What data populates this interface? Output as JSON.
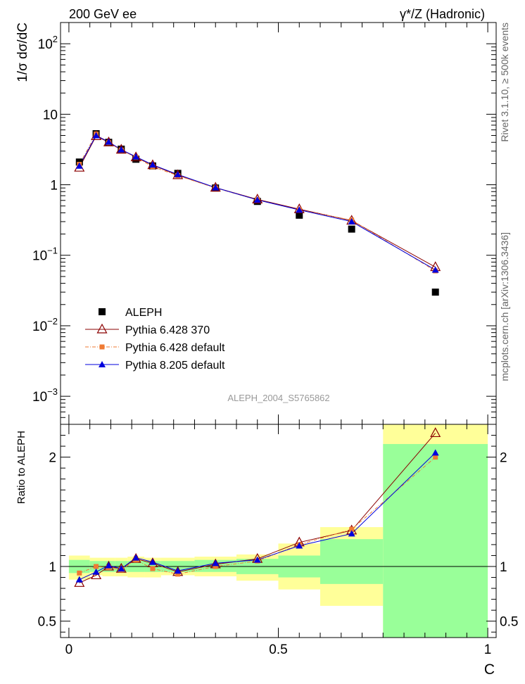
{
  "header": {
    "left": "200 GeV ee",
    "right": "γ*/Z (Hadronic)"
  },
  "side_labels": {
    "rivet": "Rivet 3.1.10, ≥ 500k events",
    "mcplots": "mcplots.cern.ch [arXiv:1306.3436]"
  },
  "watermark": "ALEPH_2004_S5765862",
  "colors": {
    "aleph": "#000000",
    "p6_370": "#8b0000",
    "p6_default": "#ef7a33",
    "p8": "#0000dd",
    "band_inner": "#99ff99",
    "band_outer": "#ffff99"
  },
  "chart_data": [
    {
      "id": "main",
      "type": "scatter",
      "ylabel": "1/σ dσ/dC",
      "yscale": "log",
      "ylim": [
        0.0004,
        200
      ],
      "xlim": [
        -0.02,
        1.02
      ],
      "y_tick_labels": [
        {
          "v": 100,
          "base": "10",
          "exp": "2"
        },
        {
          "v": 10,
          "base": "10",
          "exp": ""
        },
        {
          "v": 1,
          "base": "1",
          "exp": ""
        },
        {
          "v": 0.1,
          "base": "10",
          "exp": "−1"
        },
        {
          "v": 0.01,
          "base": "10",
          "exp": "−2"
        },
        {
          "v": 0.001,
          "base": "10",
          "exp": "−3"
        }
      ],
      "series": [
        {
          "name": "ALEPH",
          "marker": "square",
          "x": [
            0.025,
            0.065,
            0.095,
            0.125,
            0.16,
            0.2,
            0.26,
            0.35,
            0.45,
            0.55,
            0.675,
            0.875
          ],
          "y": [
            2.1,
            5.3,
            4.0,
            3.2,
            2.3,
            1.85,
            1.45,
            0.9,
            0.58,
            0.37,
            0.235,
            0.03
          ]
        },
        {
          "name": "Pythia 6.428 370",
          "marker": "triangle-open",
          "x": [
            0.025,
            0.065,
            0.095,
            0.125,
            0.16,
            0.2,
            0.26,
            0.35,
            0.45,
            0.55,
            0.675,
            0.875
          ],
          "y": [
            1.75,
            4.9,
            4.0,
            3.15,
            2.45,
            1.9,
            1.37,
            0.91,
            0.62,
            0.45,
            0.31,
            0.068
          ]
        },
        {
          "name": "Pythia 6.428 default",
          "marker": "square-small",
          "x": [
            0.025,
            0.065,
            0.095,
            0.125,
            0.16,
            0.2,
            0.26,
            0.35,
            0.45,
            0.55,
            0.675,
            0.875
          ],
          "y": [
            1.95,
            5.25,
            3.95,
            3.1,
            2.45,
            1.8,
            1.35,
            0.9,
            0.61,
            0.44,
            0.315,
            0.06
          ]
        },
        {
          "name": "Pythia 8.205 default",
          "marker": "triangle",
          "x": [
            0.025,
            0.065,
            0.095,
            0.125,
            0.16,
            0.2,
            0.26,
            0.35,
            0.45,
            0.55,
            0.675,
            0.875
          ],
          "y": [
            1.85,
            5.0,
            4.05,
            3.15,
            2.5,
            1.92,
            1.4,
            0.91,
            0.61,
            0.44,
            0.3,
            0.062
          ]
        }
      ]
    },
    {
      "id": "ratio",
      "type": "line",
      "xlabel": "C",
      "ylabel": "Ratio to ALEPH",
      "ylim": [
        0.35,
        2.3
      ],
      "xlim": [
        -0.02,
        1.02
      ],
      "x_tick_labels": [
        {
          "v": 0,
          "t": "0"
        },
        {
          "v": 0.5,
          "t": "0.5"
        },
        {
          "v": 1,
          "t": "1"
        }
      ],
      "y_tick_labels": [
        {
          "v": 0.5,
          "t": "0.5"
        },
        {
          "v": 1,
          "t": "1"
        },
        {
          "v": 2,
          "t": "2"
        }
      ],
      "bands": [
        {
          "x0": 0.0,
          "x1": 0.05,
          "inner": [
            0.94,
            1.06
          ],
          "outer": [
            0.88,
            1.1
          ]
        },
        {
          "x0": 0.05,
          "x1": 0.08,
          "inner": [
            0.95,
            1.05
          ],
          "outer": [
            0.92,
            1.08
          ]
        },
        {
          "x0": 0.08,
          "x1": 0.11,
          "inner": [
            0.95,
            1.05
          ],
          "outer": [
            0.91,
            1.08
          ]
        },
        {
          "x0": 0.11,
          "x1": 0.14,
          "inner": [
            0.95,
            1.05
          ],
          "outer": [
            0.91,
            1.08
          ]
        },
        {
          "x0": 0.14,
          "x1": 0.18,
          "inner": [
            0.95,
            1.05
          ],
          "outer": [
            0.9,
            1.09
          ]
        },
        {
          "x0": 0.18,
          "x1": 0.22,
          "inner": [
            0.95,
            1.05
          ],
          "outer": [
            0.9,
            1.08
          ]
        },
        {
          "x0": 0.22,
          "x1": 0.3,
          "inner": [
            0.95,
            1.05
          ],
          "outer": [
            0.92,
            1.08
          ]
        },
        {
          "x0": 0.3,
          "x1": 0.4,
          "inner": [
            0.95,
            1.06
          ],
          "outer": [
            0.91,
            1.09
          ]
        },
        {
          "x0": 0.4,
          "x1": 0.5,
          "inner": [
            0.93,
            1.07
          ],
          "outer": [
            0.87,
            1.11
          ]
        },
        {
          "x0": 0.5,
          "x1": 0.6,
          "inner": [
            0.9,
            1.1
          ],
          "outer": [
            0.79,
            1.21
          ]
        },
        {
          "x0": 0.6,
          "x1": 0.75,
          "inner": [
            0.84,
            1.25
          ],
          "outer": [
            0.64,
            1.36
          ]
        },
        {
          "x0": 0.75,
          "x1": 1.0,
          "inner": [
            0.35,
            2.12
          ],
          "outer": [
            0.35,
            2.3
          ]
        }
      ],
      "series": [
        {
          "name": "Pythia 6.428 370",
          "marker": "triangle-open",
          "x": [
            0.025,
            0.065,
            0.095,
            0.125,
            0.16,
            0.2,
            0.26,
            0.35,
            0.45,
            0.55,
            0.675,
            0.875
          ],
          "y": [
            0.85,
            0.92,
            1.0,
            0.98,
            1.07,
            1.03,
            0.95,
            1.02,
            1.07,
            1.22,
            1.33,
            2.22
          ]
        },
        {
          "name": "Pythia 6.428 default",
          "marker": "square-small",
          "x": [
            0.025,
            0.065,
            0.095,
            0.125,
            0.16,
            0.2,
            0.26,
            0.35,
            0.45,
            0.55,
            0.675,
            0.875
          ],
          "y": [
            0.94,
            1.0,
            0.99,
            0.97,
            1.06,
            0.98,
            0.93,
            1.0,
            1.05,
            1.2,
            1.34,
            2.0
          ]
        },
        {
          "name": "Pythia 8.205 default",
          "marker": "triangle",
          "x": [
            0.025,
            0.065,
            0.095,
            0.125,
            0.16,
            0.2,
            0.26,
            0.35,
            0.45,
            0.55,
            0.675,
            0.875
          ],
          "y": [
            0.88,
            0.95,
            1.01,
            0.98,
            1.08,
            1.04,
            0.96,
            1.03,
            1.06,
            1.19,
            1.3,
            2.04
          ]
        }
      ]
    }
  ]
}
